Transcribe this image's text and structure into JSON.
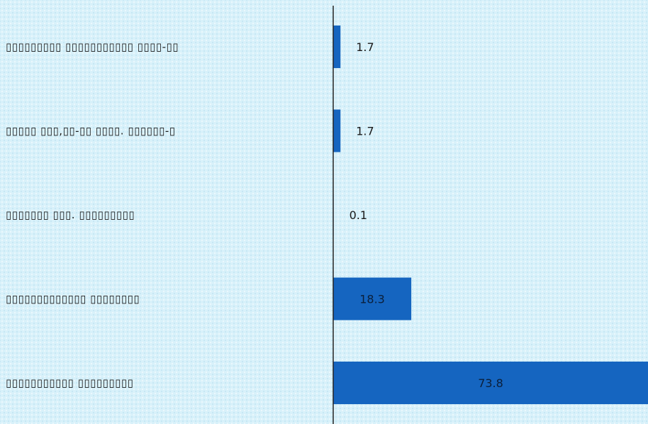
{
  "chart_data": {
    "type": "bar",
    "orientation": "horizontal",
    "categories": [
      "▯▯▯▯▯▯▯▯▯ ▯▯▯▯▯▯▯▯▯▯▯ ▯▯▯▯-▯▯",
      "▯▯▯▯▯ ▯▯▯,▯▯-▯▯ ▯▯▯▯. ▯▯▯▯▯▯-▯",
      "▯▯▯▯▯▯▯ ▯▯▯. ▯▯▯▯▯▯▯▯▯",
      "▯▯▯▯▯▯▯▯▯▯▯▯▯ ▯▯▯▯▯▯▯▯",
      "▯▯▯▯▯▯▯▯▯▯▯ ▯▯▯▯▯▯▯▯▯"
    ],
    "values": [
      1.7,
      1.7,
      0.1,
      18.3,
      73.8
    ],
    "value_labels": [
      "1.7",
      "1.7",
      "0.1",
      "18.3",
      "73.8"
    ],
    "xlim": [
      0,
      73.8
    ],
    "grid": false,
    "legend": "none",
    "bar_color": "#1565c0",
    "title": "",
    "xlabel": "",
    "ylabel": ""
  }
}
